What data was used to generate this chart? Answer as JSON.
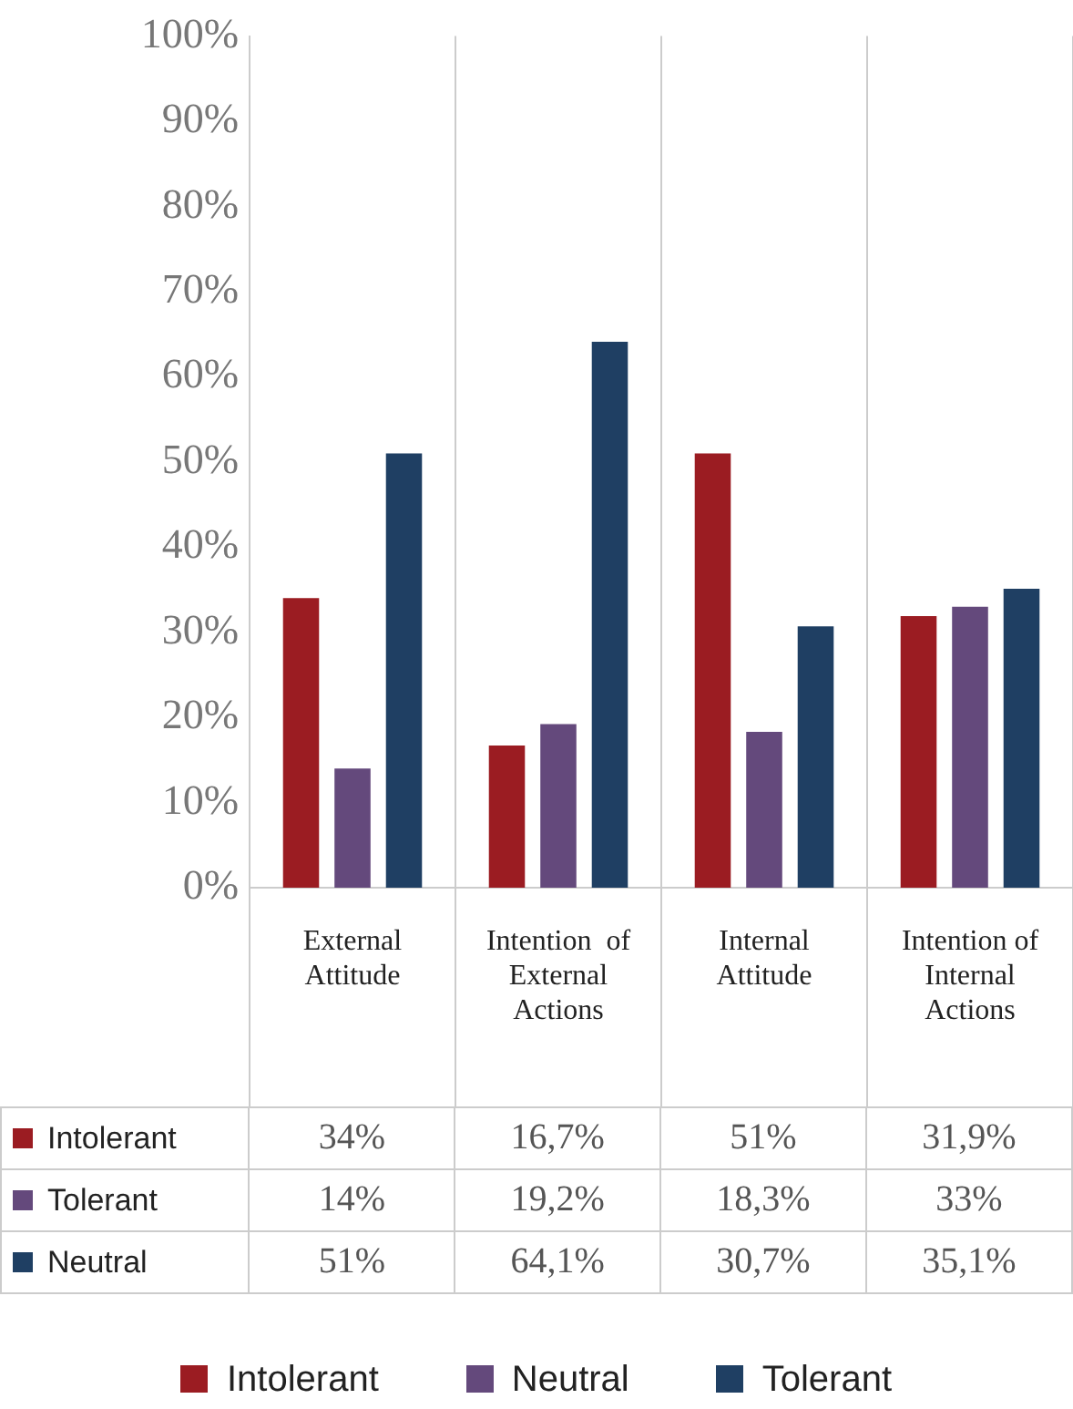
{
  "chart_data": {
    "type": "bar",
    "categories": [
      "External Attitude",
      "Intention  of External Actions",
      "Internal Attitude",
      "Intention of Internal Actions"
    ],
    "series": [
      {
        "name": "Intolerant",
        "color": "#9b1c22",
        "values": [
          34,
          16.7,
          51,
          31.9
        ],
        "value_labels": [
          "34%",
          "16,7%",
          "51%",
          "31,9%"
        ]
      },
      {
        "name": "Neutral",
        "color": "#64497c",
        "values": [
          14,
          19.2,
          18.3,
          33
        ],
        "value_labels": [
          "14%",
          "19,2%",
          "18,3%",
          "33%"
        ]
      },
      {
        "name": "Tolerant",
        "color": "#1f3f63",
        "values": [
          51,
          64.1,
          30.7,
          35.1
        ],
        "value_labels": [
          "51%",
          "64,1%",
          "30,7%",
          "35,1%"
        ]
      }
    ],
    "ylim": [
      0,
      100
    ],
    "yticks": [
      {
        "value": 0,
        "label": "0%"
      },
      {
        "value": 10,
        "label": "10%"
      },
      {
        "value": 20,
        "label": "20%"
      },
      {
        "value": 30,
        "label": "30%"
      },
      {
        "value": 40,
        "label": "40%"
      },
      {
        "value": 50,
        "label": "50%"
      },
      {
        "value": 60,
        "label": "60%"
      },
      {
        "value": 70,
        "label": "70%"
      },
      {
        "value": 80,
        "label": "80%"
      },
      {
        "value": 90,
        "label": "90%"
      },
      {
        "value": 100,
        "label": "100%"
      }
    ],
    "annotations": [
      "Intolerant",
      "Tolerant",
      "Neutral"
    ],
    "grid": "x",
    "legend": "bottom"
  }
}
